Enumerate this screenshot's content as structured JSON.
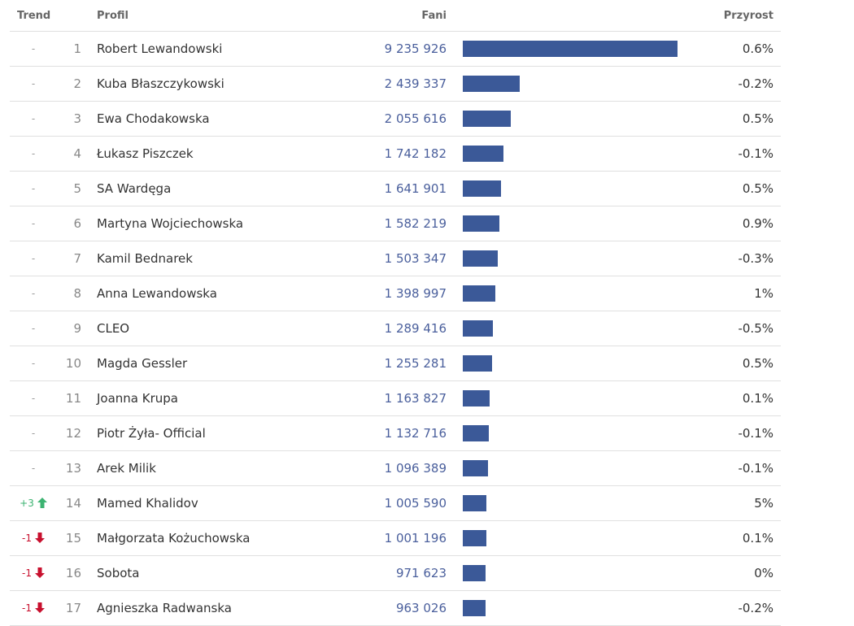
{
  "header": {
    "trend": "Trend",
    "profile": "Profil",
    "fans": "Fani",
    "growth": "Przyrost"
  },
  "rows": [
    {
      "trend": {
        "text": "-"
      },
      "rank": 1,
      "name": "Robert Lewandowski",
      "fans": {
        "value": 9235926,
        "label": "9 235 926"
      },
      "growth": "0.6%"
    },
    {
      "trend": {
        "text": "-"
      },
      "rank": 2,
      "name": "Kuba Błaszczykowski",
      "fans": {
        "value": 2439337,
        "label": "2 439 337"
      },
      "growth": "-0.2%"
    },
    {
      "trend": {
        "text": "-"
      },
      "rank": 3,
      "name": "Ewa Chodakowska",
      "fans": {
        "value": 2055616,
        "label": "2 055 616"
      },
      "growth": "0.5%"
    },
    {
      "trend": {
        "text": "-"
      },
      "rank": 4,
      "name": "Łukasz Piszczek",
      "fans": {
        "value": 1742182,
        "label": "1 742 182"
      },
      "growth": "-0.1%"
    },
    {
      "trend": {
        "text": "-"
      },
      "rank": 5,
      "name": "SA Wardęga",
      "fans": {
        "value": 1641901,
        "label": "1 641 901"
      },
      "growth": "0.5%"
    },
    {
      "trend": {
        "text": "-"
      },
      "rank": 6,
      "name": "Martyna Wojciechowska",
      "fans": {
        "value": 1582219,
        "label": "1 582 219"
      },
      "growth": "0.9%"
    },
    {
      "trend": {
        "text": "-"
      },
      "rank": 7,
      "name": "Kamil Bednarek",
      "fans": {
        "value": 1503347,
        "label": "1 503 347"
      },
      "growth": "-0.3%"
    },
    {
      "trend": {
        "text": "-"
      },
      "rank": 8,
      "name": "Anna Lewandowska",
      "fans": {
        "value": 1398997,
        "label": "1 398 997"
      },
      "growth": "1%"
    },
    {
      "trend": {
        "text": "-"
      },
      "rank": 9,
      "name": "CLEO",
      "fans": {
        "value": 1289416,
        "label": "1 289 416"
      },
      "growth": "-0.5%"
    },
    {
      "trend": {
        "text": "-"
      },
      "rank": 10,
      "name": "Magda Gessler",
      "fans": {
        "value": 1255281,
        "label": "1 255 281"
      },
      "growth": "0.5%"
    },
    {
      "trend": {
        "text": "-"
      },
      "rank": 11,
      "name": "Joanna Krupa",
      "fans": {
        "value": 1163827,
        "label": "1 163 827"
      },
      "growth": "0.1%"
    },
    {
      "trend": {
        "text": "-"
      },
      "rank": 12,
      "name": "Piotr Żyła- Official",
      "fans": {
        "value": 1132716,
        "label": "1 132 716"
      },
      "growth": "-0.1%"
    },
    {
      "trend": {
        "text": "-"
      },
      "rank": 13,
      "name": "Arek Milik",
      "fans": {
        "value": 1096389,
        "label": "1 096 389"
      },
      "growth": "-0.1%"
    },
    {
      "trend": {
        "text": "+3",
        "direction": "up"
      },
      "rank": 14,
      "name": "Mamed Khalidov",
      "fans": {
        "value": 1005590,
        "label": "1 005 590"
      },
      "growth": "5%"
    },
    {
      "trend": {
        "text": "-1",
        "direction": "down"
      },
      "rank": 15,
      "name": "Małgorzata Kożuchowska",
      "fans": {
        "value": 1001196,
        "label": "1 001 196"
      },
      "growth": "0.1%"
    },
    {
      "trend": {
        "text": "-1",
        "direction": "down"
      },
      "rank": 16,
      "name": "Sobota",
      "fans": {
        "value": 971623,
        "label": "971 623"
      },
      "growth": "0%"
    },
    {
      "trend": {
        "text": "-1",
        "direction": "down"
      },
      "rank": 17,
      "name": "Agnieszka Radwanska",
      "fans": {
        "value": 963026,
        "label": "963 026"
      },
      "growth": "-0.2%"
    }
  ]
}
